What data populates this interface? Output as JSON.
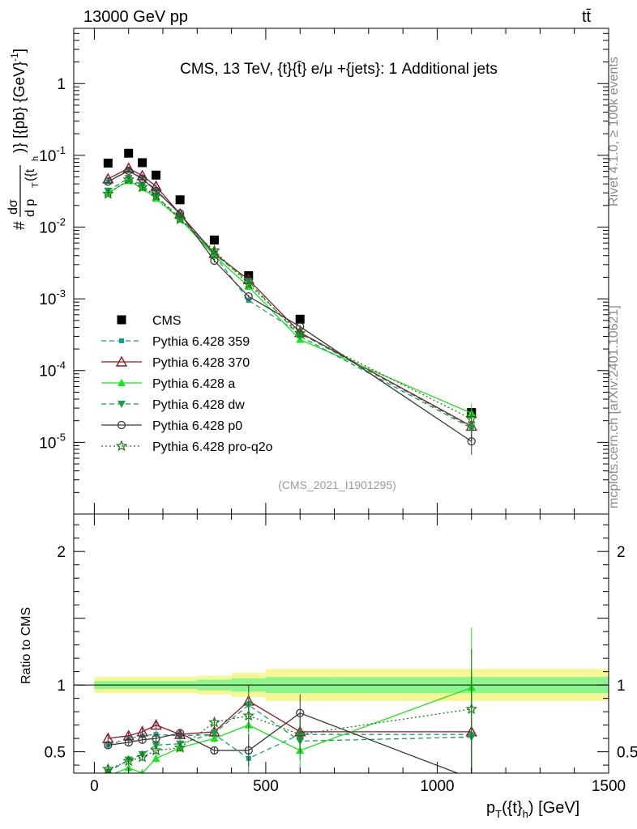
{
  "header": {
    "left": "13000 GeV pp",
    "right": "tt̄"
  },
  "side_text": {
    "rivet": "Rivet 4.1.0, ≥ 100k events",
    "mcplots": "mcplots.cern.ch [arXiv:2401.10621]"
  },
  "chart_data": [
    {
      "type": "line",
      "panel": "main",
      "title": "CMS, 13 TeV, {t}{t̄} e/μ +{jets}: 1 Additional jets",
      "annotation": "(CMS_2021_I1901295)",
      "ylabel": "#dσ/d p_T({t_h})} [{pb} {GeV}^-1]",
      "ylabel_parts": {
        "hash": "#",
        "num": "dσ",
        "den": "d p",
        "sub": "T",
        "tail": "({t",
        "sub2": "h",
        "unit": ")} [{pb} {GeV}",
        "exp": "-1",
        "close": "]"
      },
      "xlim": [
        -60,
        1500
      ],
      "ylim_log10": [
        -6,
        0.77
      ],
      "yticks": [
        {
          "exp": -5,
          "base": "10",
          "sup": "-5"
        },
        {
          "exp": -4,
          "base": "10",
          "sup": "-4"
        },
        {
          "exp": -3,
          "base": "10",
          "sup": "-3"
        },
        {
          "exp": -2,
          "base": "10",
          "sup": "-2"
        },
        {
          "exp": -1,
          "base": "10",
          "sup": "-1"
        },
        {
          "exp": 0,
          "base": "1",
          "sup": ""
        }
      ],
      "x": [
        40,
        100,
        140,
        180,
        250,
        350,
        450,
        600,
        1100
      ],
      "series": [
        {
          "name": "CMS",
          "color": "#000000",
          "marker": "square",
          "line": "none",
          "values": [
            0.078,
            0.107,
            0.079,
            0.053,
            0.024,
            0.0066,
            0.0021,
            0.00052,
            2.6e-05
          ]
        },
        {
          "name": "Pythia 6.428 359",
          "color": "#1a9e86",
          "marker": "square-small",
          "line": "dashed",
          "values": [
            0.043,
            0.062,
            0.048,
            0.033,
            0.015,
            0.0041,
            0.00095,
            0.00033,
            1.63e-05
          ]
        },
        {
          "name": "Pythia 6.428 370",
          "color": "#8b1a2b",
          "marker": "triangle-open",
          "line": "solid",
          "values": [
            0.047,
            0.066,
            0.052,
            0.037,
            0.0152,
            0.0043,
            0.00185,
            0.00034,
            1.68e-05
          ]
        },
        {
          "name": "Pythia 6.428 a",
          "color": "#19e619",
          "marker": "triangle",
          "line": "solid",
          "values": [
            0.03,
            0.044,
            0.035,
            0.025,
            0.013,
            0.004,
            0.00148,
            0.00027,
            2.55e-05
          ]
        },
        {
          "name": "Pythia 6.428 dw",
          "color": "#17a04a",
          "marker": "triangle-down",
          "line": "dashed",
          "values": [
            0.032,
            0.048,
            0.038,
            0.027,
            0.0135,
            0.0042,
            0.00175,
            0.0003,
            1.58e-05
          ]
        },
        {
          "name": "Pythia 6.428 p0",
          "color": "#3a3a3a",
          "marker": "circle-open",
          "line": "solid",
          "values": [
            0.043,
            0.061,
            0.047,
            0.032,
            0.0155,
            0.0034,
            0.00108,
            0.00041,
            1.03e-05
          ]
        },
        {
          "name": "Pythia 6.428 pro-q2o",
          "color": "#1a7a1a",
          "marker": "star",
          "line": "dotted",
          "values": [
            0.029,
            0.046,
            0.036,
            0.027,
            0.0128,
            0.0047,
            0.0016,
            0.00033,
            2.12e-05
          ]
        }
      ]
    },
    {
      "type": "line",
      "panel": "ratio",
      "ylabel": "Ratio to CMS",
      "xlabel": "p_T({t}_h) [GeV]",
      "xlabel_parts": {
        "main": "p",
        "sub": "T",
        "mid": "({t}",
        "sub2": "h",
        "tail": ") [GeV]"
      },
      "xlim": [
        -60,
        1500
      ],
      "ylim": [
        0.34,
        2.28
      ],
      "xticks": [
        0,
        500,
        1000,
        1500
      ],
      "xtick_labels": [
        "0",
        "500",
        "1000",
        "1500"
      ],
      "yticks": [
        0.5,
        1,
        2
      ],
      "ytick_labels": [
        "0.5",
        "1",
        "2"
      ],
      "bin_edges": [
        0,
        80,
        120,
        160,
        200,
        300,
        400,
        500,
        700,
        1500
      ],
      "band_stat": [
        0.03,
        0.03,
        0.03,
        0.03,
        0.03,
        0.04,
        0.05,
        0.06,
        0.06
      ],
      "band_total": [
        0.06,
        0.06,
        0.06,
        0.06,
        0.06,
        0.07,
        0.09,
        0.12,
        0.12
      ],
      "series": [
        {
          "name": "Pythia 6.428 359",
          "values": [
            0.55,
            0.6,
            0.62,
            0.63,
            0.62,
            0.63,
            0.45,
            0.63,
            0.63
          ]
        },
        {
          "name": "Pythia 6.428 370",
          "values": [
            0.6,
            0.62,
            0.65,
            0.7,
            0.63,
            0.65,
            0.88,
            0.65,
            0.65
          ]
        },
        {
          "name": "Pythia 6.428 a",
          "values": [
            0.32,
            0.38,
            0.34,
            0.45,
            0.53,
            0.6,
            0.7,
            0.51,
            0.98
          ]
        },
        {
          "name": "Pythia 6.428 dw",
          "values": [
            0.35,
            0.44,
            0.48,
            0.55,
            0.56,
            0.64,
            0.85,
            0.58,
            0.61
          ]
        },
        {
          "name": "Pythia 6.428 p0",
          "values": [
            0.55,
            0.57,
            0.59,
            0.6,
            0.64,
            0.51,
            0.51,
            0.79,
            0.3
          ]
        },
        {
          "name": "Pythia 6.428 pro-q2o",
          "values": [
            0.37,
            0.43,
            0.46,
            0.51,
            0.53,
            0.72,
            0.77,
            0.63,
            0.82
          ]
        }
      ]
    }
  ]
}
